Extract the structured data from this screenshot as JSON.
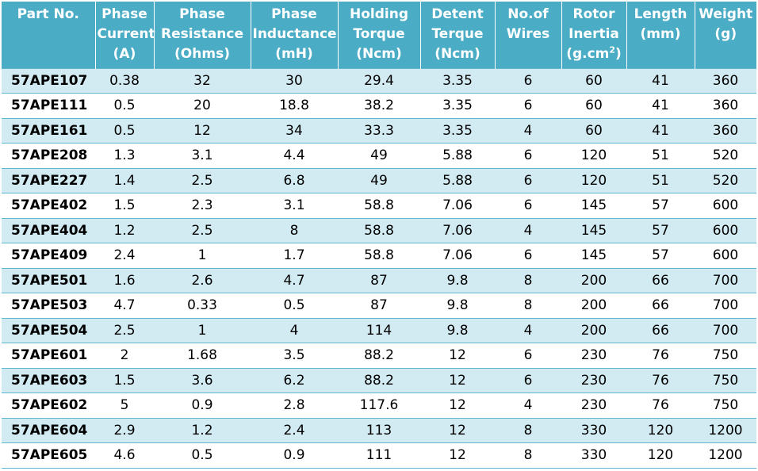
{
  "colors": {
    "header_background": "#4bacc6",
    "header_text": "#ffffff",
    "band_row": "#d2eaf1",
    "plain_row": "#ffffff",
    "row_rule": "#5fb7cf"
  },
  "headers": [
    {
      "lines": [
        "Part No."
      ]
    },
    {
      "lines": [
        "Phase",
        "Current",
        "(A)"
      ]
    },
    {
      "lines": [
        "Phase",
        "Resistance",
        "(Ohms)"
      ]
    },
    {
      "lines": [
        "Phase",
        "Inductance",
        "(mH)"
      ]
    },
    {
      "lines": [
        "Holding",
        "Torque",
        "(Ncm)"
      ]
    },
    {
      "lines": [
        "Detent",
        "Terque",
        "(Ncm)"
      ]
    },
    {
      "lines": [
        "No.of",
        "Wires"
      ]
    },
    {
      "lines": [
        "Rotor",
        "Inertia"
      ],
      "unit_base": "(g.cm",
      "unit_sup": "2",
      "unit_tail": ")"
    },
    {
      "lines": [
        "Length",
        "(mm)"
      ]
    },
    {
      "lines": [
        "Weight",
        "(g)"
      ]
    }
  ],
  "rows": [
    [
      "57APE107",
      "0.38",
      "32",
      "30",
      "29.4",
      "3.35",
      "6",
      "60",
      "41",
      "360"
    ],
    [
      "57APE111",
      "0.5",
      "20",
      "18.8",
      "38.2",
      "3.35",
      "6",
      "60",
      "41",
      "360"
    ],
    [
      "57APE161",
      "0.5",
      "12",
      "34",
      "33.3",
      "3.35",
      "4",
      "60",
      "41",
      "360"
    ],
    [
      "57APE208",
      "1.3",
      "3.1",
      "4.4",
      "49",
      "5.88",
      "6",
      "120",
      "51",
      "520"
    ],
    [
      "57APE227",
      "1.4",
      "2.5",
      "6.8",
      "49",
      "5.88",
      "6",
      "120",
      "51",
      "520"
    ],
    [
      "57APE402",
      "1.5",
      "2.3",
      "3.1",
      "58.8",
      "7.06",
      "6",
      "145",
      "57",
      "600"
    ],
    [
      "57APE404",
      "1.2",
      "2.5",
      "8",
      "58.8",
      "7.06",
      "4",
      "145",
      "57",
      "600"
    ],
    [
      "57APE409",
      "2.4",
      "1",
      "1.7",
      "58.8",
      "7.06",
      "6",
      "145",
      "57",
      "600"
    ],
    [
      "57APE501",
      "1.6",
      "2.6",
      "4.7",
      "87",
      "9.8",
      "8",
      "200",
      "66",
      "700"
    ],
    [
      "57APE503",
      "4.7",
      "0.33",
      "0.5",
      "87",
      "9.8",
      "8",
      "200",
      "66",
      "700"
    ],
    [
      "57APE504",
      "2.5",
      "1",
      "4",
      "114",
      "9.8",
      "4",
      "200",
      "66",
      "700"
    ],
    [
      "57APE601",
      "2",
      "1.68",
      "3.5",
      "88.2",
      "12",
      "6",
      "230",
      "76",
      "750"
    ],
    [
      "57APE603",
      "1.5",
      "3.6",
      "6.2",
      "88.2",
      "12",
      "6",
      "230",
      "76",
      "750"
    ],
    [
      "57APE602",
      "5",
      "0.9",
      "2.8",
      "117.6",
      "12",
      "4",
      "230",
      "76",
      "750"
    ],
    [
      "57APE604",
      "2.9",
      "1.2",
      "2.4",
      "113",
      "12",
      "8",
      "330",
      "120",
      "1200"
    ],
    [
      "57APE605",
      "4.6",
      "0.5",
      "0.9",
      "111",
      "12",
      "8",
      "330",
      "120",
      "1200"
    ]
  ]
}
